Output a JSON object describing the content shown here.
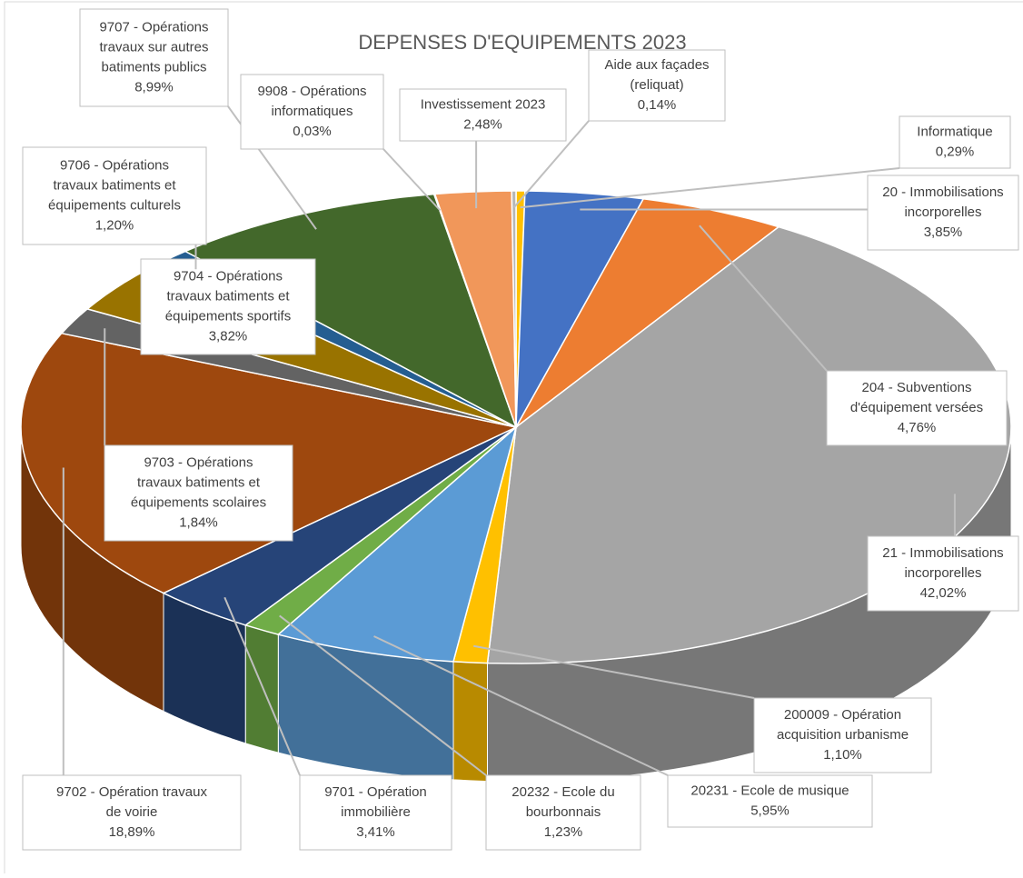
{
  "chart_data": {
    "type": "pie3d",
    "title": "DEPENSES D'EQUIPEMENTS 2023",
    "label_lines": [
      [
        "Informatique"
      ],
      [
        "20 - Immobilisations",
        "incorporelles"
      ],
      [
        "204 - Subventions",
        "d'équipement versées"
      ],
      [
        "21 - Immobilisations",
        "incorporelles"
      ],
      [
        "200009 - Opération",
        "acquisition urbanisme"
      ],
      [
        "20231 - Ecole de musique"
      ],
      [
        "20232 - Ecole du",
        "bourbonnais"
      ],
      [
        "9701 - Opération",
        "immobilière"
      ],
      [
        "9702 - Opération travaux",
        "de voirie"
      ],
      [
        "9703 - Opérations",
        "travaux batiments et",
        "équipements scolaires"
      ],
      [
        "9704 - Opérations",
        "travaux batiments et",
        "équipements sportifs"
      ],
      [
        "9706 - Opérations",
        "travaux batiments et",
        "équipements culturels"
      ],
      [
        "9707 - Opérations",
        "travaux sur autres",
        "batiments publics"
      ],
      [
        "9908 - Opérations",
        "informatiques"
      ],
      [
        "Investissement 2023"
      ],
      [
        "Aide aux façades",
        "(reliquat)"
      ]
    ],
    "values": [
      0.29,
      3.85,
      4.76,
      42.02,
      1.1,
      5.95,
      1.23,
      3.41,
      18.89,
      1.84,
      3.82,
      1.2,
      8.99,
      0.03,
      2.48,
      0.14
    ],
    "value_labels": [
      "0,29%",
      "3,85%",
      "4,76%",
      "42,02%",
      "1,10%",
      "5,95%",
      "1,23%",
      "3,41%",
      "18,89%",
      "1,84%",
      "3,82%",
      "1,20%",
      "8,99%",
      "0,03%",
      "2,48%",
      "0,14%"
    ],
    "colors": [
      "#ffc000",
      "#4472c4",
      "#ed7d31",
      "#a5a5a5",
      "#ffc000",
      "#5b9bd5",
      "#70ad47",
      "#264478",
      "#9e480e",
      "#636363",
      "#997300",
      "#255e91",
      "#43682b",
      "#698ed0",
      "#f1975a",
      "#b7b7b7"
    ]
  }
}
